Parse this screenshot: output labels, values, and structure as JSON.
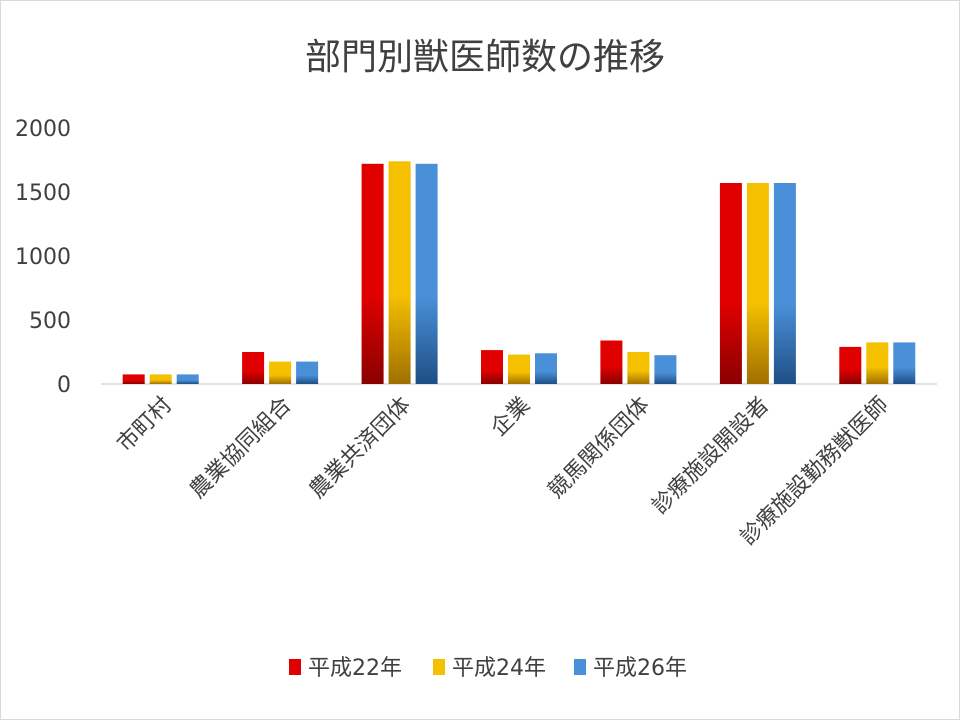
{
  "chart_data": {
    "type": "bar",
    "title": "部門別獣医師数の推移",
    "xlabel": "",
    "ylabel": "",
    "ylim": [
      0,
      2000
    ],
    "yticks": [
      0,
      500,
      1000,
      1500,
      2000
    ],
    "grid": false,
    "legend_position": "bottom",
    "categories": [
      "市町村",
      "農業協同組合",
      "農業共済団体",
      "企業",
      "競馬関係団体",
      "診療施設開設者",
      "診療施設勤務獣医師"
    ],
    "series": [
      {
        "name": "平成22年",
        "color": "#e00000",
        "color_dark": "#8a0000",
        "values": [
          75,
          250,
          1720,
          265,
          340,
          1570,
          290
        ]
      },
      {
        "name": "平成24年",
        "color": "#f5c000",
        "color_dark": "#a07000",
        "values": [
          75,
          175,
          1740,
          230,
          250,
          1570,
          325
        ]
      },
      {
        "name": "平成26年",
        "color": "#4a90d8",
        "color_dark": "#1e4f86",
        "values": [
          75,
          175,
          1720,
          240,
          225,
          1570,
          325
        ]
      }
    ]
  }
}
